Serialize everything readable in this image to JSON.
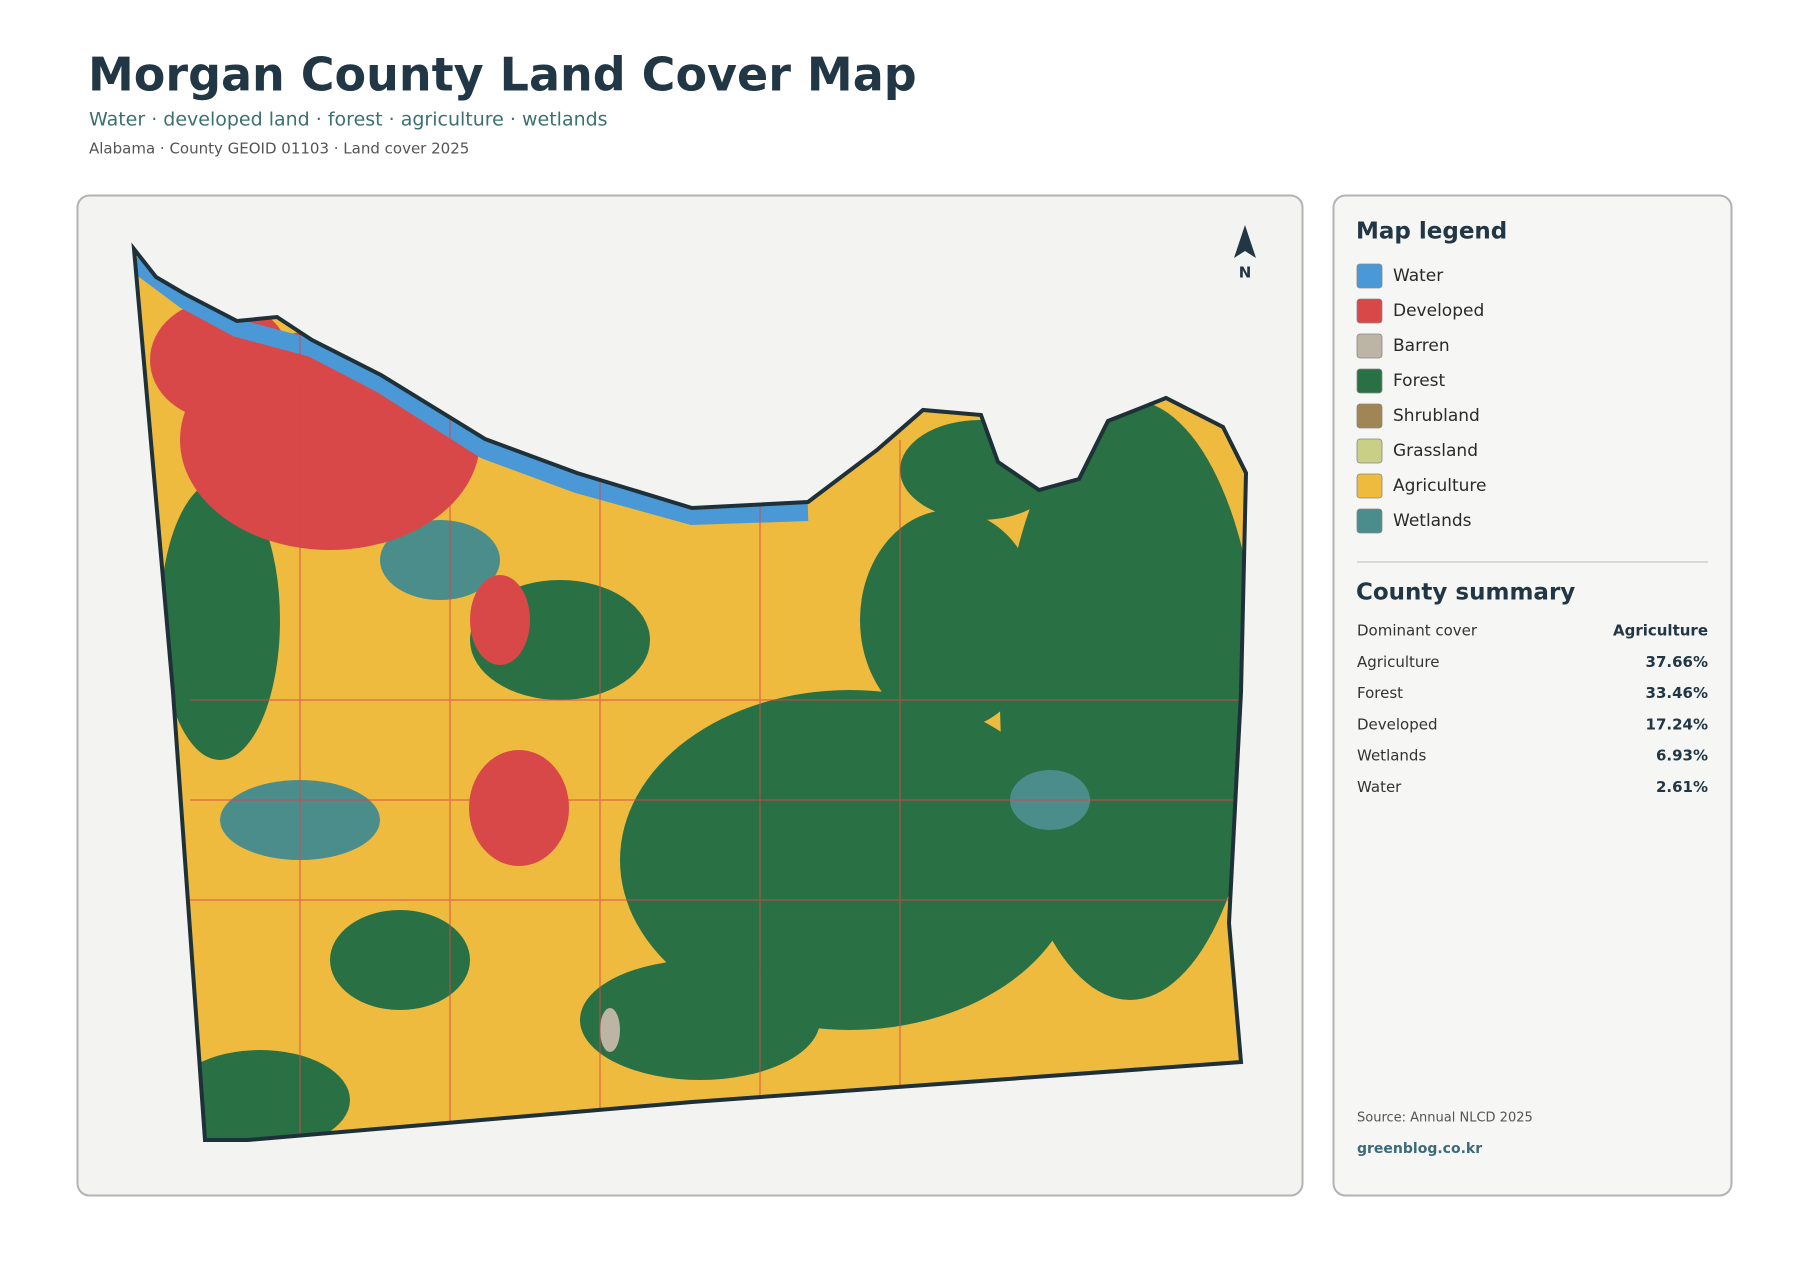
{
  "header": {
    "title": "Morgan County Land Cover Map",
    "subtitle": "Water · developed land · forest · agriculture · wetlands",
    "meta": "Alabama · County GEOID 01103 · Land cover 2025"
  },
  "map": {
    "north": "N"
  },
  "legend": {
    "title": "Map legend",
    "items": [
      {
        "label": "Water",
        "color": "#4a98d6"
      },
      {
        "label": "Developed",
        "color": "#d94848"
      },
      {
        "label": "Barren",
        "color": "#bcb4a4"
      },
      {
        "label": "Forest",
        "color": "#2a7045"
      },
      {
        "label": "Shrubland",
        "color": "#a08654"
      },
      {
        "label": "Grassland",
        "color": "#c9cf86"
      },
      {
        "label": "Agriculture",
        "color": "#efbb3e"
      },
      {
        "label": "Wetlands",
        "color": "#4b8d8a"
      }
    ]
  },
  "summary": {
    "title": "County summary",
    "rows": [
      {
        "label": "Dominant cover",
        "value": "Agriculture"
      },
      {
        "label": "Agriculture",
        "value": "37.66%"
      },
      {
        "label": "Forest",
        "value": "33.46%"
      },
      {
        "label": "Developed",
        "value": "17.24%"
      },
      {
        "label": "Wetlands",
        "value": "6.93%"
      },
      {
        "label": "Water",
        "value": "2.61%"
      }
    ]
  },
  "footer": {
    "source": "Source: Annual NLCD 2025",
    "site": "greenblog.co.kr"
  }
}
